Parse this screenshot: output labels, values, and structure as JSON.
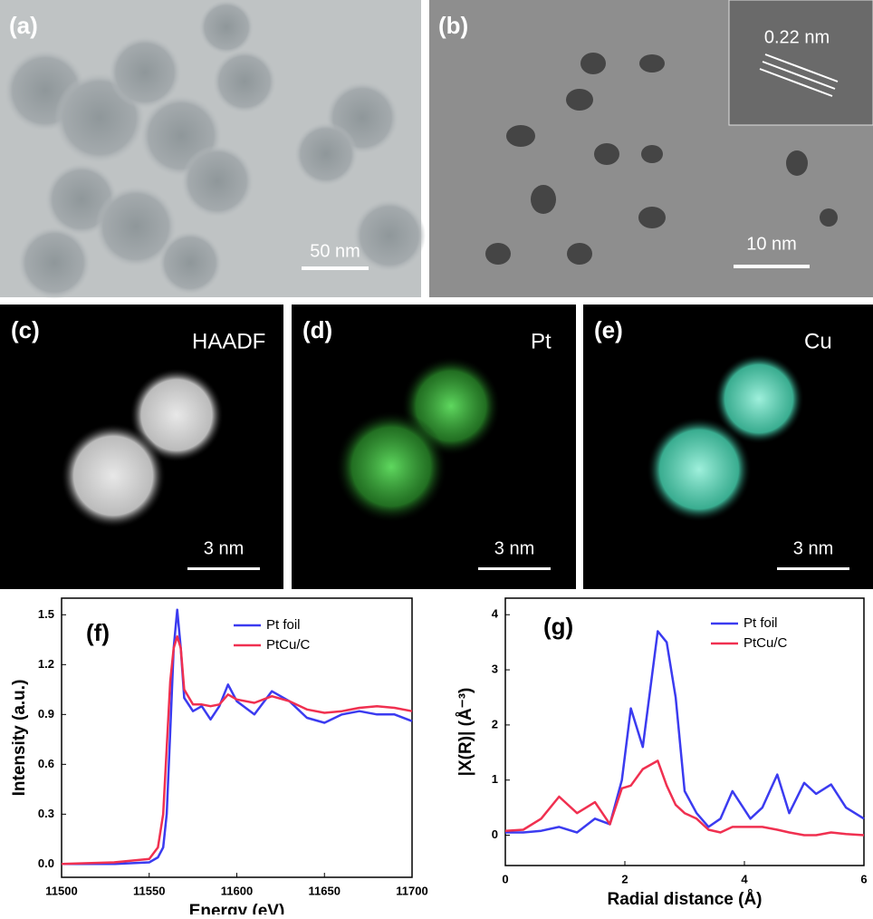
{
  "panels": [
    {
      "label": "(a)",
      "scale": "50 nm"
    },
    {
      "label": "(b)",
      "inset": "0.22 nm",
      "scale": "10 nm"
    },
    {
      "label": "(c)",
      "name": "HAADF",
      "scale": "3 nm"
    },
    {
      "label": "(d)",
      "name": "Pt",
      "scale": "3 nm"
    },
    {
      "label": "(e)",
      "name": "Cu",
      "scale": "3 nm"
    }
  ],
  "chart_data": [
    {
      "type": "line",
      "title": "(f)",
      "xlabel": "Energy (eV)",
      "ylabel": "Intensity (a.u.)",
      "x": [
        11500,
        11530,
        11550,
        11555,
        11558,
        11560,
        11562,
        11564,
        11566,
        11568,
        11570,
        11575,
        11580,
        11585,
        11590,
        11595,
        11600,
        11610,
        11620,
        11630,
        11640,
        11650,
        11660,
        11670,
        11680,
        11690,
        11700
      ],
      "series": [
        {
          "name": "Pt foil",
          "color": "#3b3bf0",
          "values": [
            0,
            0,
            0.01,
            0.04,
            0.1,
            0.3,
            0.8,
            1.3,
            1.53,
            1.3,
            1.0,
            0.92,
            0.95,
            0.87,
            0.95,
            1.08,
            0.98,
            0.9,
            1.04,
            0.98,
            0.88,
            0.85,
            0.9,
            0.92,
            0.9,
            0.9,
            0.86
          ]
        },
        {
          "name": "PtCu/C",
          "color": "#f03050",
          "values": [
            0,
            0.01,
            0.03,
            0.1,
            0.3,
            0.7,
            1.1,
            1.3,
            1.37,
            1.3,
            1.05,
            0.96,
            0.96,
            0.95,
            0.96,
            1.02,
            0.99,
            0.97,
            1.01,
            0.98,
            0.93,
            0.91,
            0.92,
            0.94,
            0.95,
            0.94,
            0.92
          ]
        }
      ],
      "xlim": [
        11500,
        11700
      ],
      "xticks": [
        11500,
        11550,
        11600,
        11650,
        11700
      ],
      "ylim": [
        -0.08,
        1.6
      ],
      "yticks": [
        {
          "value": 0,
          "label": "0.0"
        },
        0.3,
        0.6,
        0.9,
        1.2,
        1.5
      ]
    },
    {
      "type": "line",
      "title": "(g)",
      "xlabel": "Radial distance (Å)",
      "ylabel": "|X(R)| (Å⁻³)",
      "x": [
        0,
        0.3,
        0.6,
        0.9,
        1.2,
        1.5,
        1.75,
        1.95,
        2.1,
        2.3,
        2.55,
        2.7,
        2.85,
        3.0,
        3.2,
        3.4,
        3.6,
        3.8,
        4.1,
        4.3,
        4.55,
        4.75,
        5.0,
        5.2,
        5.45,
        5.7,
        6.0
      ],
      "series": [
        {
          "name": "Pt foil",
          "color": "#3b3bf0",
          "values": [
            0.05,
            0.05,
            0.08,
            0.15,
            0.05,
            0.3,
            0.2,
            1.0,
            2.3,
            1.6,
            3.7,
            3.5,
            2.5,
            0.8,
            0.4,
            0.15,
            0.3,
            0.8,
            0.3,
            0.5,
            1.1,
            0.4,
            0.95,
            0.75,
            0.92,
            0.5,
            0.3
          ]
        },
        {
          "name": "PtCu/C",
          "color": "#f03050",
          "values": [
            0.08,
            0.1,
            0.3,
            0.7,
            0.4,
            0.6,
            0.2,
            0.85,
            0.9,
            1.2,
            1.35,
            0.9,
            0.55,
            0.4,
            0.3,
            0.1,
            0.05,
            0.15,
            0.15,
            0.15,
            0.1,
            0.05,
            0,
            0,
            0.05,
            0.02,
            0
          ]
        }
      ],
      "xlim": [
        0,
        6
      ],
      "xticks": [
        0,
        2,
        4,
        6
      ],
      "ylim": [
        -0.55,
        4.3
      ],
      "yticks": [
        0,
        1,
        2,
        3,
        4
      ]
    }
  ]
}
